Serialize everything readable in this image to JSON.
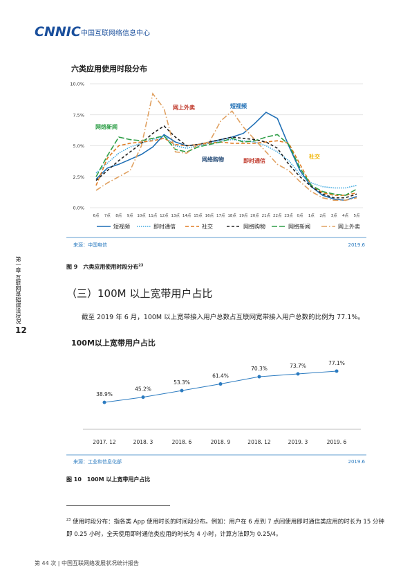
{
  "header": {
    "logo": "CNNIC",
    "org": "中国互联网络信息中心"
  },
  "side": {
    "page_number": "12",
    "chapter": "第一章 互联网基础建设状况"
  },
  "chart_data": [
    {
      "type": "line",
      "title": "六类应用使用时段分布",
      "categories": [
        "6点",
        "7点",
        "8点",
        "9点",
        "10点",
        "11点",
        "12点",
        "13点",
        "14点",
        "15点",
        "16点",
        "17点",
        "18点",
        "19点",
        "20点",
        "21点",
        "22点",
        "23点",
        "0点",
        "1点",
        "2点",
        "3点",
        "4点",
        "5点"
      ],
      "ylim": [
        0,
        10
      ],
      "yticks": [
        {
          "value": 0,
          "label": "0.0%"
        },
        {
          "value": 2.5,
          "label": "2.5%"
        },
        {
          "value": 5,
          "label": "5.0%"
        },
        {
          "value": 7.5,
          "label": "7.5%"
        },
        {
          "value": 10,
          "label": "10.0%"
        }
      ],
      "grid": true,
      "series": [
        {
          "name": "短视频",
          "color": "#1f6fb5",
          "values": [
            2.3,
            3.2,
            3.5,
            3.9,
            4.3,
            4.9,
            5.9,
            5.3,
            5.0,
            5.1,
            5.3,
            5.5,
            5.7,
            6.0,
            6.8,
            7.7,
            7.2,
            5.0,
            3.0,
            1.7,
            1.0,
            0.7,
            0.6,
            0.9
          ]
        },
        {
          "name": "即时通信",
          "color": "#3fa9e0",
          "values": [
            2.8,
            3.6,
            4.4,
            4.9,
            5.2,
            5.5,
            5.8,
            5.0,
            4.8,
            5.0,
            5.2,
            5.4,
            5.5,
            5.4,
            5.3,
            5.0,
            4.5,
            3.8,
            2.7,
            2.0,
            1.7,
            1.6,
            1.6,
            1.8
          ]
        },
        {
          "name": "社交",
          "color": "#e07b22",
          "values": [
            1.8,
            4.0,
            5.0,
            5.2,
            5.3,
            5.4,
            5.6,
            5.1,
            5.0,
            5.1,
            5.2,
            5.3,
            5.2,
            5.2,
            5.2,
            5.3,
            5.4,
            5.2,
            3.5,
            1.8,
            1.2,
            1.0,
            1.0,
            1.2
          ]
        },
        {
          "name": "网络购物",
          "color": "#222222",
          "values": [
            2.2,
            3.0,
            3.8,
            4.5,
            5.2,
            6.0,
            6.6,
            5.7,
            5.0,
            5.1,
            5.3,
            5.5,
            5.7,
            5.6,
            5.5,
            5.3,
            4.8,
            3.5,
            2.5,
            1.7,
            1.1,
            0.8,
            0.8,
            1.1
          ]
        },
        {
          "name": "网络新闻",
          "color": "#2e9e47",
          "values": [
            2.5,
            4.2,
            5.7,
            5.5,
            5.4,
            5.6,
            5.8,
            4.7,
            4.5,
            4.9,
            5.1,
            5.3,
            5.6,
            5.3,
            5.4,
            5.7,
            5.9,
            5.1,
            3.2,
            1.8,
            1.3,
            1.1,
            1.0,
            1.5
          ]
        },
        {
          "name": "网上外卖",
          "color": "#e0a060",
          "values": [
            1.4,
            2.0,
            2.5,
            3.0,
            5.0,
            9.2,
            8.0,
            4.5,
            4.4,
            5.1,
            5.3,
            7.0,
            7.8,
            6.5,
            5.5,
            4.5,
            3.5,
            3.0,
            2.1,
            1.3,
            0.8,
            0.6,
            0.6,
            0.8
          ]
        }
      ],
      "annotations": [
        {
          "text": "网上外卖",
          "color": "#c0392b"
        },
        {
          "text": "短视频",
          "color": "#1f6fb5"
        },
        {
          "text": "网络新闻",
          "color": "#2e9e47"
        },
        {
          "text": "网络购物",
          "color": "#2a4f7a"
        },
        {
          "text": "即时通信",
          "color": "#c0392b"
        },
        {
          "text": "社交",
          "color": "#f0b400"
        }
      ],
      "source": "来源：中国电信",
      "date": "2019.6",
      "caption": "图 9　六类应用使用时段分布",
      "caption_note": "23"
    },
    {
      "type": "line",
      "title": "100M以上宽带用户占比",
      "categories": [
        "2017. 12",
        "2018. 3",
        "2018. 6",
        "2018. 9",
        "2018. 12",
        "2019. 3",
        "2019. 6"
      ],
      "color": "#2b7bc0",
      "values": [
        38.9,
        45.2,
        53.3,
        61.4,
        70.3,
        73.7,
        77.1
      ],
      "value_labels": [
        "38.9%",
        "45.2%",
        "53.3%",
        "61.4%",
        "70.3%",
        "73.7%",
        "77.1%"
      ],
      "source": "来源：工业和信息化部",
      "date": "2019.6",
      "caption": "图 10　100M 以上宽带用户占比"
    }
  ],
  "section": {
    "heading": "（三）100M 以上宽带用户占比",
    "paragraph": "截至 2019 年 6 月，100M 以上宽带接入用户总数占互联网宽带接入用户总数的比例为 77.1%。"
  },
  "footnote": {
    "number": "23",
    "text": "使用时段分布：指各类 App 使用时长的时间段分布。例如：用户在 6 点到 7 点间使用即时通信类应用的时长为 15 分钟即 0.25 小时，全天使用即时通信类应用的时长为 4 小时，计算方法即为 0.25/4。"
  },
  "footer": "第 44 次 | 中国互联网络发展状况统计报告"
}
